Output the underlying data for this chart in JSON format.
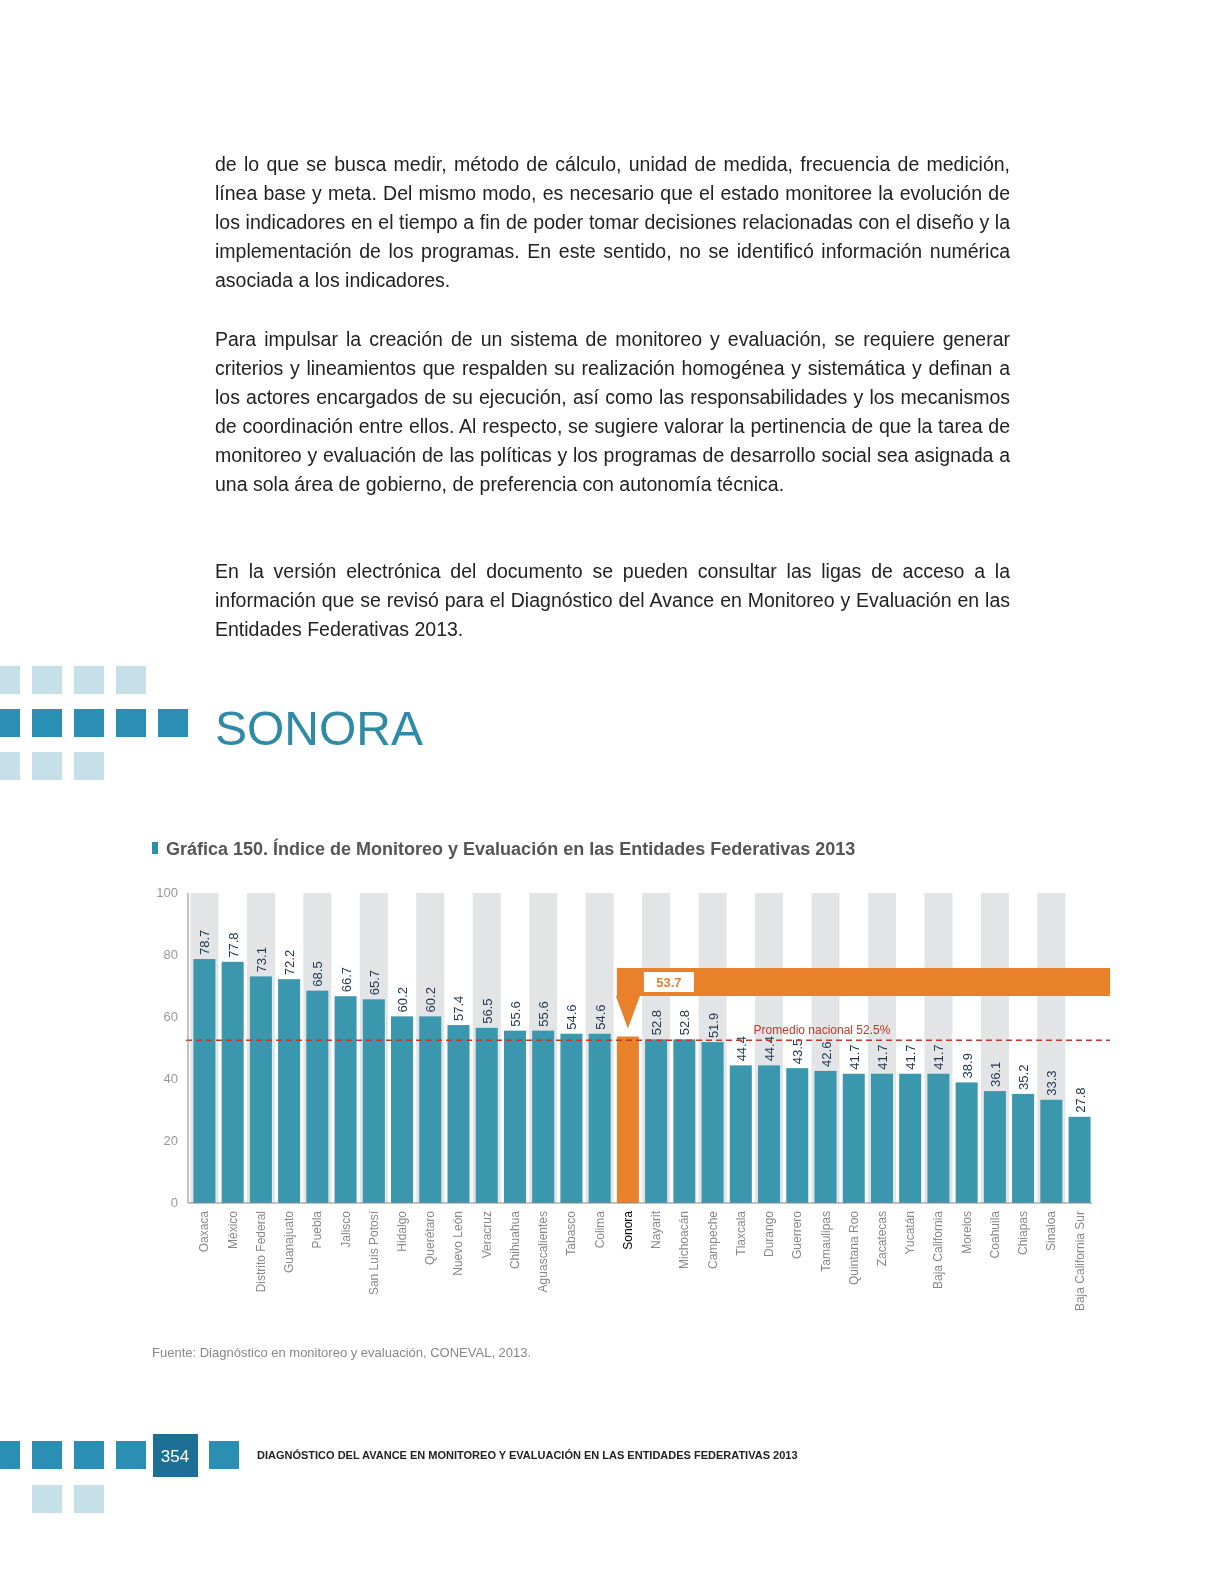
{
  "chart_data": {
    "type": "bar",
    "title": "Gráfica 150. Índice de Monitoreo y Evaluación en las Entidades Federativas 2013",
    "subtitle": "SONORA",
    "categories": [
      "Oaxaca",
      "México",
      "Distrito Federal",
      "Guanajuato",
      "Puebla",
      "Jalisco",
      "San Luis Potosí",
      "Hidalgo",
      "Querétaro",
      "Nuevo León",
      "Veracruz",
      "Chihuahua",
      "Aguascalientes",
      "Tabasco",
      "Colima",
      "Sonora",
      "Nayarit",
      "Michoacán",
      "Campeche",
      "Tlaxcala",
      "Durango",
      "Guerrero",
      "Tamaulipas",
      "Quintana Roo",
      "Zacatecas",
      "Yucatán",
      "Baja California",
      "Morelos",
      "Coahuila",
      "Chiapas",
      "Sinaloa",
      "Baja California Sur"
    ],
    "values": [
      78.7,
      77.8,
      73.1,
      72.2,
      68.5,
      66.7,
      65.7,
      60.2,
      60.2,
      57.4,
      56.5,
      55.6,
      55.6,
      54.6,
      54.6,
      53.7,
      52.8,
      52.8,
      51.9,
      44.4,
      44.4,
      43.5,
      42.6,
      41.7,
      41.7,
      41.7,
      41.7,
      38.9,
      36.1,
      35.2,
      33.3,
      27.8
    ],
    "value_labels": [
      "78.7",
      "77.8",
      "73.1",
      "72.2",
      "68.5",
      "66.7",
      "65.7",
      "60.2",
      "60.2",
      "57.4",
      "56.5",
      "55.6",
      "55.6",
      "54.6",
      "54.6",
      null,
      "52.8",
      "52.8",
      "51.9",
      "44.4",
      "44.4",
      "43.5",
      "42.6",
      "41.7",
      "41.7",
      "41.7",
      "41.7",
      "38.9",
      "36.1",
      "35.2",
      "33.3",
      "27.8"
    ],
    "colors": [
      "#3a97ad",
      "#3a97ad",
      "#3a97ad",
      "#3a97ad",
      "#3a97ad",
      "#3a97ad",
      "#3a97ad",
      "#3a97ad",
      "#3a97ad",
      "#3a97ad",
      "#3a97ad",
      "#3a97ad",
      "#3a97ad",
      "#3a97ad",
      "#3a97ad",
      "#e8812a",
      "#3a97ad",
      "#3a97ad",
      "#3a97ad",
      "#3a97ad",
      "#3a97ad",
      "#3a97ad",
      "#3a97ad",
      "#3a97ad",
      "#3a97ad",
      "#3a97ad",
      "#3a97ad",
      "#3a97ad",
      "#3a97ad",
      "#3a97ad",
      "#3a97ad",
      "#3a97ad"
    ],
    "ylim": [
      0,
      100
    ],
    "yticks": [
      0,
      20,
      40,
      60,
      80,
      100
    ],
    "ref_lines": [
      {
        "axis": "y",
        "value": 52.5,
        "label": "Promedio nacional 52.5%",
        "color": "#c0392b",
        "line_style": "dashed"
      }
    ],
    "annotations": [
      "de lo que se busca medir, método de cálculo, unidad de medida, frecuencia de medición, línea base y meta. Del mismo modo, es necesario que el estado monitoree la evolución de los indicadores en el tiempo a fin de poder tomar decisiones relacionadas con el diseño y la implementación de los programas. En este sentido, no se identificó información numérica asociada a los indicadores.",
      "Para impulsar la creación de un sistema de monitoreo y evaluación, se requiere generar criterios y lineamientos que respalden su realización homogénea y sistemática y definan a los actores encargados de su ejecución, así como las responsabilidades y los mecanismos de coordinación entre ellos. Al respecto, se sugiere valorar la pertinencia de que la tarea de monitoreo y evaluación de las políticas y los programas de desarrollo social sea asignada a una sola área de gobierno, de preferencia con autonomía técnica.",
      "En la versión electrónica del documento se pueden consultar las ligas de acceso a la información que se revisó para el Diagnóstico del Avance en Monitoreo y Evaluación en las Entidades Federativas 2013.",
      "Fuente: Diagnóstico en monitoreo y evaluación, CONEVAL, 2013.",
      "354",
      "DIAGNÓSTICO DEL AVANCE EN MONITOREO Y EVALUACIÓN EN LAS ENTIDADES FEDERATIVAS 2013",
      "53.7"
    ]
  }
}
